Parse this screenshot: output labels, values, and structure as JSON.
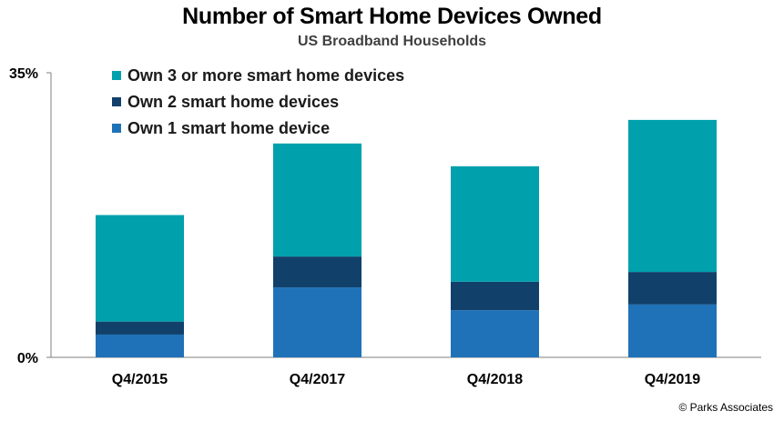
{
  "chart_data": {
    "type": "bar",
    "stacked": true,
    "title": "Number of Smart Home Devices Owned",
    "subtitle": "US Broadband Households",
    "categories": [
      "Q4/2015",
      "Q4/2017",
      "Q4/2018",
      "Q4/2019"
    ],
    "series": [
      {
        "name": "Own 1 smart home device",
        "color": "#1f72b8",
        "values": [
          2.8,
          8.6,
          5.8,
          6.5
        ]
      },
      {
        "name": "Own 2 smart home devices",
        "color": "#11416b",
        "values": [
          1.6,
          3.8,
          3.5,
          4.0
        ]
      },
      {
        "name": "Own 3 or more smart home devices",
        "color": "#00a0ad",
        "values": [
          13.1,
          13.9,
          14.2,
          18.7
        ]
      }
    ],
    "yticks": [
      "0%",
      "35%"
    ],
    "ylim": [
      0,
      35
    ],
    "legend_position": "top-left",
    "grid": false
  },
  "source": "© Parks Associates"
}
